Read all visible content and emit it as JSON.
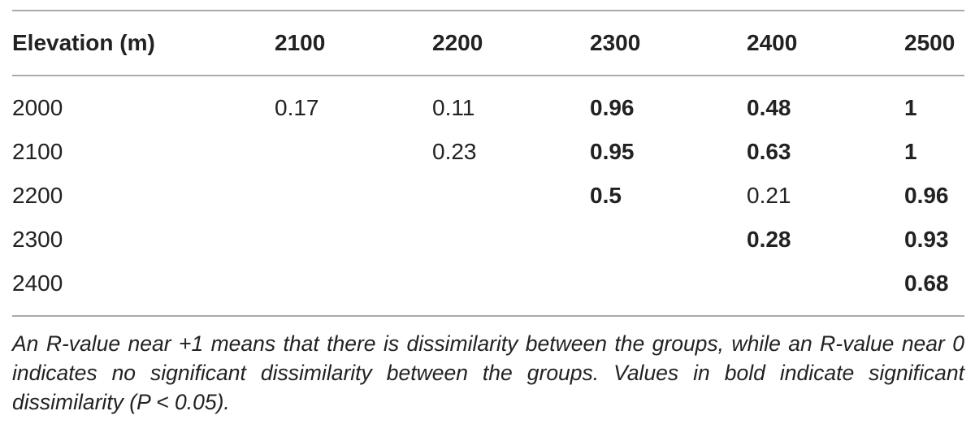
{
  "table": {
    "header": [
      "Elevation (m)",
      "2100",
      "2200",
      "2300",
      "2400",
      "2500"
    ],
    "rows": [
      {
        "label": "2000",
        "cells": [
          {
            "text": "0.17",
            "bold": false
          },
          {
            "text": "0.11",
            "bold": false
          },
          {
            "text": "0.96",
            "bold": true
          },
          {
            "text": "0.48",
            "bold": true
          },
          {
            "text": "1",
            "bold": true
          }
        ]
      },
      {
        "label": "2100",
        "cells": [
          null,
          {
            "text": "0.23",
            "bold": false
          },
          {
            "text": "0.95",
            "bold": true
          },
          {
            "text": "0.63",
            "bold": true
          },
          {
            "text": "1",
            "bold": true
          }
        ]
      },
      {
        "label": "2200",
        "cells": [
          null,
          null,
          {
            "text": "0.5",
            "bold": true
          },
          {
            "text": "0.21",
            "bold": false
          },
          {
            "text": "0.96",
            "bold": true
          }
        ]
      },
      {
        "label": "2300",
        "cells": [
          null,
          null,
          null,
          {
            "text": "0.28",
            "bold": true
          },
          {
            "text": "0.93",
            "bold": true
          }
        ]
      },
      {
        "label": "2400",
        "cells": [
          null,
          null,
          null,
          null,
          {
            "text": "0.68",
            "bold": true
          }
        ]
      }
    ]
  },
  "note": "An R-value near +1 means that there is dissimilarity between the groups, while an R-value near 0 indicates no significant dissimilarity between the groups. Values in bold indicate significant dissimilarity (P < 0.05)."
}
